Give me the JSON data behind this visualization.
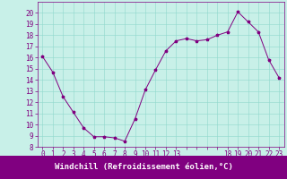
{
  "x": [
    0,
    1,
    2,
    3,
    4,
    5,
    6,
    7,
    8,
    9,
    10,
    11,
    12,
    13,
    14,
    15,
    16,
    17,
    18,
    19,
    20,
    21,
    22,
    23
  ],
  "y": [
    16.1,
    14.7,
    12.5,
    11.1,
    9.7,
    8.9,
    8.9,
    8.8,
    8.5,
    10.5,
    13.1,
    14.9,
    16.6,
    17.5,
    17.7,
    17.5,
    17.6,
    18.0,
    18.3,
    20.1,
    19.2,
    18.3,
    15.8,
    14.2
  ],
  "line_color": "#800080",
  "marker": "*",
  "marker_size": 2.5,
  "background_color": "#c8f0e8",
  "grid_color": "#90d8cc",
  "xlabel": "Windchill (Refroidissement éolien,°C)",
  "xlabel_color": "#ffffff",
  "xlabel_background": "#800080",
  "ylim": [
    8,
    21
  ],
  "xlim": [
    -0.5,
    23.5
  ],
  "yticks": [
    8,
    9,
    10,
    11,
    12,
    13,
    14,
    15,
    16,
    17,
    18,
    19,
    20
  ],
  "xtick_labels": [
    "0",
    "1",
    "2",
    "3",
    "4",
    "5",
    "6",
    "7",
    "8",
    "9",
    "10",
    "11",
    "12",
    "13",
    "",
    "",
    "",
    "",
    "18",
    "19",
    "20",
    "21",
    "22",
    "23"
  ],
  "xtick_positions": [
    0,
    1,
    2,
    3,
    4,
    5,
    6,
    7,
    8,
    9,
    10,
    11,
    12,
    13,
    14,
    15,
    16,
    17,
    18,
    19,
    20,
    21,
    22,
    23
  ],
  "tick_color": "#800080",
  "tick_fontsize": 5.5,
  "xlabel_fontsize": 6.5,
  "linewidth": 0.7
}
